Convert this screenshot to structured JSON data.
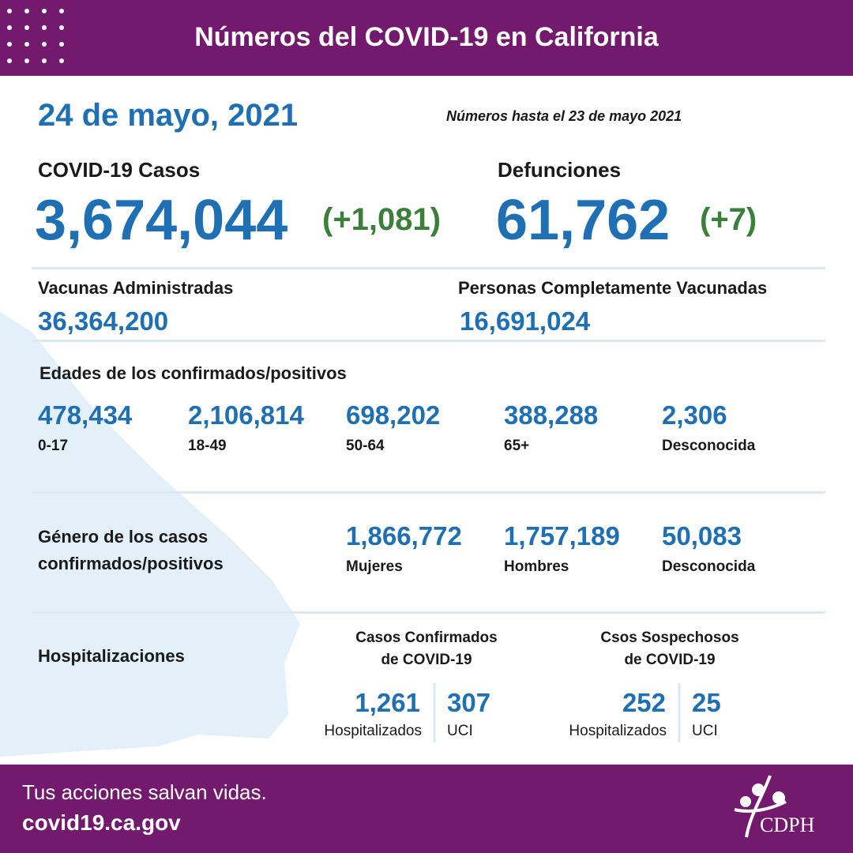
{
  "header": {
    "title": "Números del COVID-19 en California"
  },
  "date": "24 de mayo, 2021",
  "note": "Números hasta el 23 de mayo 2021",
  "cases": {
    "label": "COVID-19 Casos",
    "value": "3,674,044",
    "change": "(+1,081)"
  },
  "deaths": {
    "label": "Defunciones",
    "value": "61,762",
    "change": "(+7)"
  },
  "vaccines": {
    "label": "Vacunas Administradas",
    "value": "36,364,200"
  },
  "fully_vaccinated": {
    "label": "Personas Completamente Vacunadas",
    "value": "16,691,024"
  },
  "ages": {
    "title": "Edades de los confirmados/positivos",
    "groups": [
      {
        "value": "478,434",
        "label": "0-17"
      },
      {
        "value": "2,106,814",
        "label": "18-49"
      },
      {
        "value": "698,202",
        "label": "50-64"
      },
      {
        "value": "388,288",
        "label": "65+"
      },
      {
        "value": "2,306",
        "label": "Desconocida"
      }
    ]
  },
  "gender": {
    "title_lines": [
      "Género de los casos",
      "confirmados/positivos"
    ],
    "groups": [
      {
        "value": "1,866,772",
        "label": "Mujeres"
      },
      {
        "value": "1,757,189",
        "label": "Hombres"
      },
      {
        "value": "50,083",
        "label": "Desconocida"
      }
    ]
  },
  "hospitalizations": {
    "title": "Hospitalizaciones",
    "confirmed": {
      "title_lines": [
        "Casos Confirmados",
        "de COVID-19"
      ],
      "hospitalized": {
        "value": "1,261",
        "label": "Hospitalizados"
      },
      "icu": {
        "value": "307",
        "label": "UCI"
      }
    },
    "suspected": {
      "title_lines": [
        "Csos Sospechosos",
        "de COVID-19"
      ],
      "hospitalized": {
        "value": "252",
        "label": "Hospitalizados"
      },
      "icu": {
        "value": "25",
        "label": "UCI"
      }
    }
  },
  "footer": {
    "slogan": "Tus acciones salvan vidas.",
    "url": "covid19.ca.gov",
    "logo": "CDPH"
  }
}
